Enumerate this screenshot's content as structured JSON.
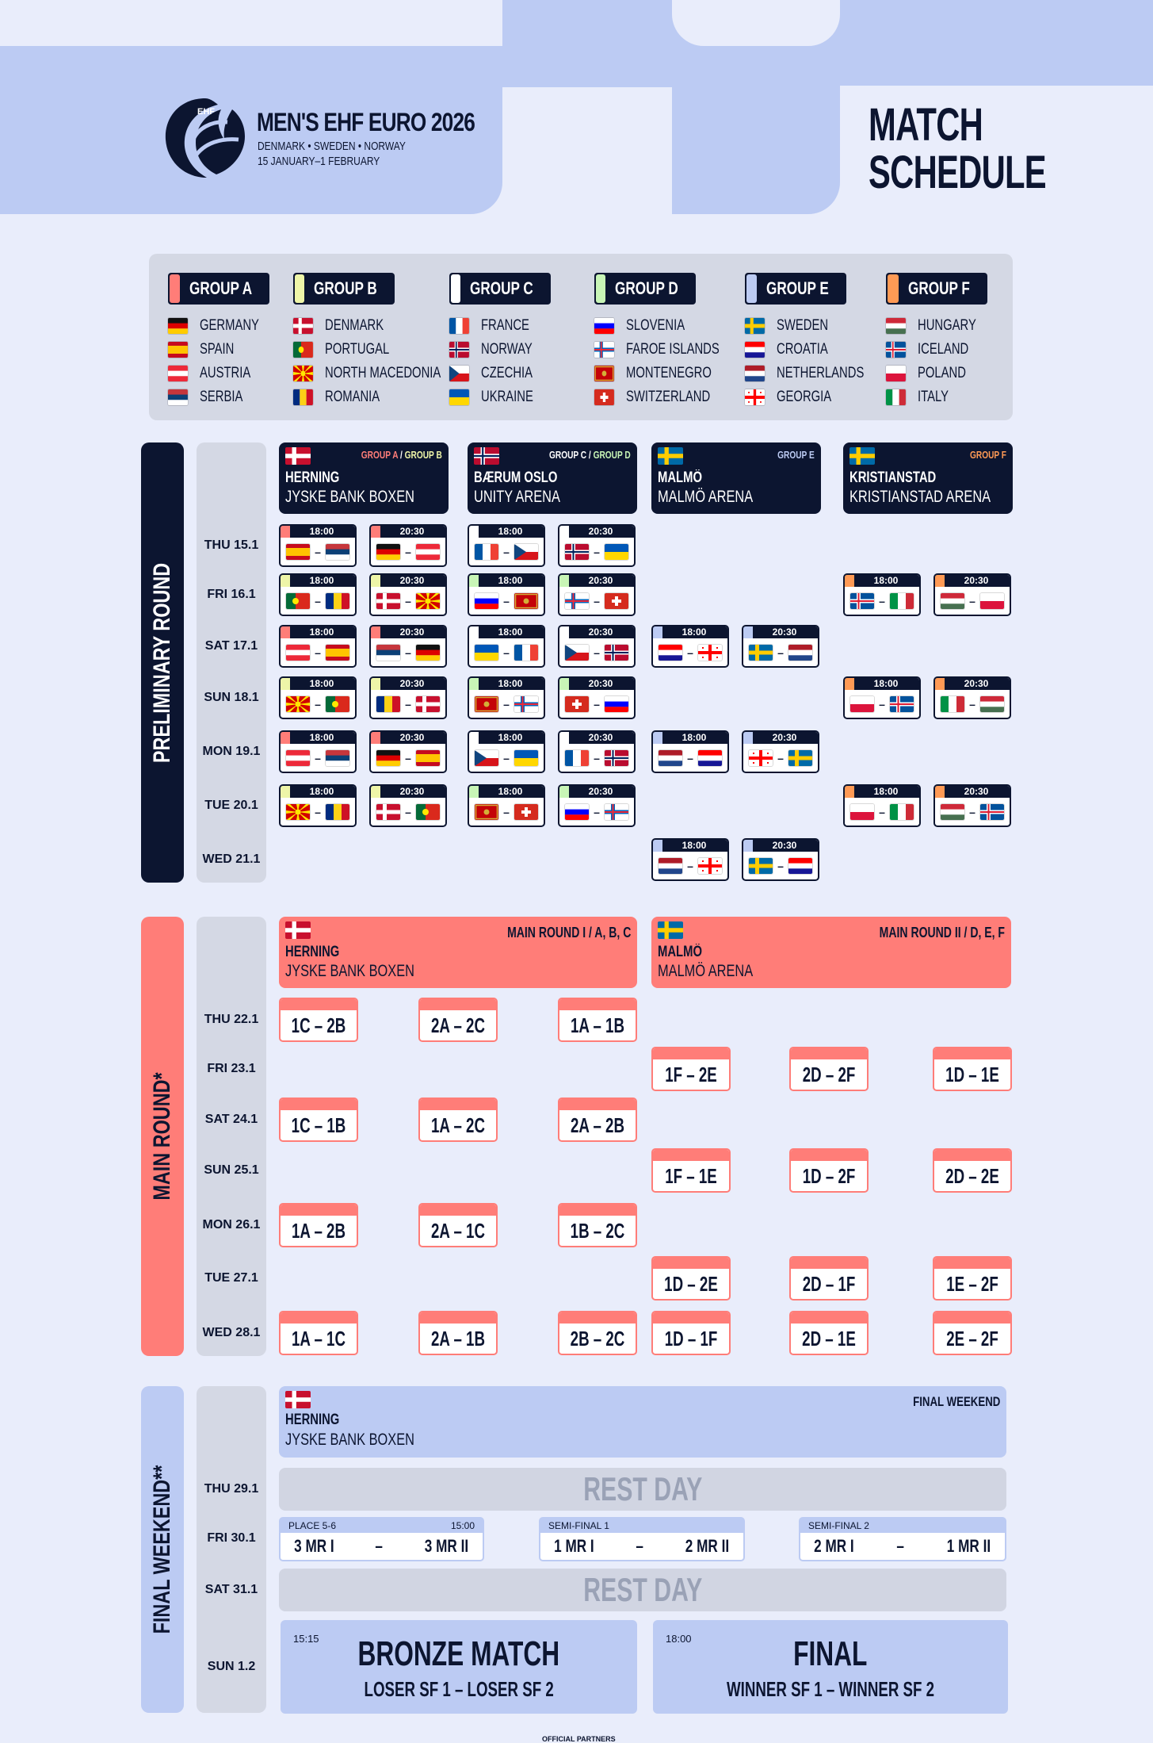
{
  "header": {
    "logo_text": "EHF",
    "title": "MEN'S EHF EURO 2026",
    "hosts": "DENMARK • SWEDEN • NORWAY",
    "dates": "15 JANUARY–1 FEBRUARY",
    "schedule_line1": "MATCH",
    "schedule_line2": "SCHEDULE"
  },
  "colors": {
    "A": "#ff7d78",
    "B": "#eef5a8",
    "C": "#ffffff",
    "D": "#c8f5b6",
    "E": "#bccbf3",
    "F": "#ff9a55",
    "navy": "#0c1530",
    "main": "#ff7d78",
    "final": "#bccbf3"
  },
  "groups": [
    {
      "label": "GROUP A",
      "color": "#ff7d78",
      "teams": [
        {
          "name": "GERMANY",
          "flag": "de"
        },
        {
          "name": "SPAIN",
          "flag": "es"
        },
        {
          "name": "AUSTRIA",
          "flag": "at"
        },
        {
          "name": "SERBIA",
          "flag": "rs"
        }
      ]
    },
    {
      "label": "GROUP B",
      "color": "#eef5a8",
      "teams": [
        {
          "name": "DENMARK",
          "flag": "dk"
        },
        {
          "name": "PORTUGAL",
          "flag": "pt"
        },
        {
          "name": "NORTH MACEDONIA",
          "flag": "mk"
        },
        {
          "name": "ROMANIA",
          "flag": "ro"
        }
      ]
    },
    {
      "label": "GROUP C",
      "color": "#ffffff",
      "teams": [
        {
          "name": "FRANCE",
          "flag": "fr"
        },
        {
          "name": "NORWAY",
          "flag": "no"
        },
        {
          "name": "CZECHIA",
          "flag": "cz"
        },
        {
          "name": "UKRAINE",
          "flag": "ua"
        }
      ]
    },
    {
      "label": "GROUP D",
      "color": "#c8f5b6",
      "teams": [
        {
          "name": "SLOVENIA",
          "flag": "si"
        },
        {
          "name": "FAROE ISLANDS",
          "flag": "fo"
        },
        {
          "name": "MONTENEGRO",
          "flag": "me"
        },
        {
          "name": "SWITZERLAND",
          "flag": "ch"
        }
      ]
    },
    {
      "label": "GROUP E",
      "color": "#bccbf3",
      "teams": [
        {
          "name": "SWEDEN",
          "flag": "se"
        },
        {
          "name": "CROATIA",
          "flag": "hr"
        },
        {
          "name": "NETHERLANDS",
          "flag": "nl"
        },
        {
          "name": "GEORGIA",
          "flag": "ge"
        }
      ]
    },
    {
      "label": "GROUP F",
      "color": "#ff9a55",
      "teams": [
        {
          "name": "HUNGARY",
          "flag": "hu"
        },
        {
          "name": "ICELAND",
          "flag": "is"
        },
        {
          "name": "POLAND",
          "flag": "pl"
        },
        {
          "name": "ITALY",
          "flag": "it"
        }
      ]
    }
  ],
  "sections": {
    "prelim": "PRELIMINARY ROUND",
    "main": "MAIN ROUND*",
    "final": "FINAL WEEKEND**"
  },
  "prelim_days": [
    "THU 15.1",
    "FRI 16.1",
    "SAT 17.1",
    "SUN 18.1",
    "MON 19.1",
    "TUE 20.1",
    "WED 21.1"
  ],
  "main_days": [
    "THU 22.1",
    "FRI 23.1",
    "SAT 24.1",
    "SUN 25.1",
    "MON 26.1",
    "TUE 27.1",
    "WED 28.1"
  ],
  "final_days": [
    "THU 29.1",
    "FRI 30.1",
    "SAT 31.1",
    "SUN 1.2"
  ],
  "prelim_venues": [
    {
      "flag": "dk",
      "city": "HERNING",
      "arena": "JYSKE BANK BOXEN",
      "g1": "GROUP A",
      "g2": "GROUP B",
      "c1": "#ff7d78",
      "c2": "#eef5a8"
    },
    {
      "flag": "no",
      "city": "BÆRUM OSLO",
      "arena": "UNITY ARENA",
      "g1": "GROUP C",
      "g2": "GROUP D",
      "c1": "#ffffff",
      "c2": "#c8f5b6"
    },
    {
      "flag": "se",
      "city": "MALMÖ",
      "arena": "MALMÖ ARENA",
      "g1": "GROUP E",
      "g2": "",
      "c1": "#bccbf3",
      "c2": ""
    },
    {
      "flag": "se",
      "city": "KRISTIANSTAD",
      "arena": "KRISTIANSTAD ARENA",
      "g1": "GROUP F",
      "g2": "",
      "c1": "#ff9a55",
      "c2": ""
    }
  ],
  "prelim_matches": [
    {
      "d": 0,
      "c": 0,
      "t": "18:00",
      "g": "A",
      "h": "es",
      "a": "rs"
    },
    {
      "d": 0,
      "c": 1,
      "t": "20:30",
      "g": "A",
      "h": "de",
      "a": "at"
    },
    {
      "d": 0,
      "c": 2,
      "t": "18:00",
      "g": "C",
      "h": "fr",
      "a": "cz"
    },
    {
      "d": 0,
      "c": 3,
      "t": "20:30",
      "g": "C",
      "h": "no",
      "a": "ua"
    },
    {
      "d": 1,
      "c": 0,
      "t": "18:00",
      "g": "B",
      "h": "pt",
      "a": "ro"
    },
    {
      "d": 1,
      "c": 1,
      "t": "20:30",
      "g": "B",
      "h": "dk",
      "a": "mk"
    },
    {
      "d": 1,
      "c": 2,
      "t": "18:00",
      "g": "D",
      "h": "si",
      "a": "me"
    },
    {
      "d": 1,
      "c": 3,
      "t": "20:30",
      "g": "D",
      "h": "fo",
      "a": "ch"
    },
    {
      "d": 1,
      "c": 6,
      "t": "18:00",
      "g": "F",
      "h": "is",
      "a": "it"
    },
    {
      "d": 1,
      "c": 7,
      "t": "20:30",
      "g": "F",
      "h": "hu",
      "a": "pl"
    },
    {
      "d": 2,
      "c": 0,
      "t": "18:00",
      "g": "A",
      "h": "at",
      "a": "es"
    },
    {
      "d": 2,
      "c": 1,
      "t": "20:30",
      "g": "A",
      "h": "rs",
      "a": "de"
    },
    {
      "d": 2,
      "c": 2,
      "t": "18:00",
      "g": "C",
      "h": "ua",
      "a": "fr"
    },
    {
      "d": 2,
      "c": 3,
      "t": "20:30",
      "g": "C",
      "h": "cz",
      "a": "no"
    },
    {
      "d": 2,
      "c": 4,
      "t": "18:00",
      "g": "E",
      "h": "hr",
      "a": "ge"
    },
    {
      "d": 2,
      "c": 5,
      "t": "20:30",
      "g": "E",
      "h": "se",
      "a": "nl"
    },
    {
      "d": 3,
      "c": 0,
      "t": "18:00",
      "g": "B",
      "h": "mk",
      "a": "pt"
    },
    {
      "d": 3,
      "c": 1,
      "t": "20:30",
      "g": "B",
      "h": "ro",
      "a": "dk"
    },
    {
      "d": 3,
      "c": 2,
      "t": "18:00",
      "g": "D",
      "h": "me",
      "a": "fo"
    },
    {
      "d": 3,
      "c": 3,
      "t": "20:30",
      "g": "D",
      "h": "ch",
      "a": "si"
    },
    {
      "d": 3,
      "c": 6,
      "t": "18:00",
      "g": "F",
      "h": "pl",
      "a": "is"
    },
    {
      "d": 3,
      "c": 7,
      "t": "20:30",
      "g": "F",
      "h": "it",
      "a": "hu"
    },
    {
      "d": 4,
      "c": 0,
      "t": "18:00",
      "g": "A",
      "h": "at",
      "a": "rs"
    },
    {
      "d": 4,
      "c": 1,
      "t": "20:30",
      "g": "A",
      "h": "de",
      "a": "es"
    },
    {
      "d": 4,
      "c": 2,
      "t": "18:00",
      "g": "C",
      "h": "cz",
      "a": "ua"
    },
    {
      "d": 4,
      "c": 3,
      "t": "20:30",
      "g": "C",
      "h": "fr",
      "a": "no"
    },
    {
      "d": 4,
      "c": 4,
      "t": "18:00",
      "g": "E",
      "h": "nl",
      "a": "hr"
    },
    {
      "d": 4,
      "c": 5,
      "t": "20:30",
      "g": "E",
      "h": "ge",
      "a": "se"
    },
    {
      "d": 5,
      "c": 0,
      "t": "18:00",
      "g": "B",
      "h": "mk",
      "a": "ro"
    },
    {
      "d": 5,
      "c": 1,
      "t": "20:30",
      "g": "B",
      "h": "dk",
      "a": "pt"
    },
    {
      "d": 5,
      "c": 2,
      "t": "18:00",
      "g": "D",
      "h": "me",
      "a": "ch"
    },
    {
      "d": 5,
      "c": 3,
      "t": "20:30",
      "g": "D",
      "h": "si",
      "a": "fo"
    },
    {
      "d": 5,
      "c": 6,
      "t": "18:00",
      "g": "F",
      "h": "pl",
      "a": "it"
    },
    {
      "d": 5,
      "c": 7,
      "t": "20:30",
      "g": "F",
      "h": "hu",
      "a": "is"
    },
    {
      "d": 6,
      "c": 4,
      "t": "18:00",
      "g": "E",
      "h": "nl",
      "a": "ge"
    },
    {
      "d": 6,
      "c": 5,
      "t": "20:30",
      "g": "E",
      "h": "se",
      "a": "hr"
    }
  ],
  "main_venues": [
    {
      "flag": "dk",
      "city": "HERNING",
      "arena": "JYSKE BANK BOXEN",
      "label": "MAIN ROUND I / A, B, C"
    },
    {
      "flag": "se",
      "city": "MALMÖ",
      "arena": "MALMÖ ARENA",
      "label": "MAIN ROUND II / D, E, F"
    }
  ],
  "main_matches": [
    {
      "d": 0,
      "c": 0,
      "t": "1C – 2B"
    },
    {
      "d": 0,
      "c": 1,
      "t": "2A – 2C"
    },
    {
      "d": 0,
      "c": 2,
      "t": "1A – 1B"
    },
    {
      "d": 1,
      "c": 3,
      "t": "1F – 2E"
    },
    {
      "d": 1,
      "c": 4,
      "t": "2D – 2F"
    },
    {
      "d": 1,
      "c": 5,
      "t": "1D – 1E"
    },
    {
      "d": 2,
      "c": 0,
      "t": "1C – 1B"
    },
    {
      "d": 2,
      "c": 1,
      "t": "1A – 2C"
    },
    {
      "d": 2,
      "c": 2,
      "t": "2A – 2B"
    },
    {
      "d": 3,
      "c": 3,
      "t": "1F – 1E"
    },
    {
      "d": 3,
      "c": 4,
      "t": "1D – 2F"
    },
    {
      "d": 3,
      "c": 5,
      "t": "2D – 2E"
    },
    {
      "d": 4,
      "c": 0,
      "t": "1A – 2B"
    },
    {
      "d": 4,
      "c": 1,
      "t": "2A – 1C"
    },
    {
      "d": 4,
      "c": 2,
      "t": "1B – 2C"
    },
    {
      "d": 5,
      "c": 3,
      "t": "1D – 2E"
    },
    {
      "d": 5,
      "c": 4,
      "t": "2D – 1F"
    },
    {
      "d": 5,
      "c": 5,
      "t": "1E – 2F"
    },
    {
      "d": 6,
      "c": 0,
      "t": "1A – 1C"
    },
    {
      "d": 6,
      "c": 1,
      "t": "2A – 1B"
    },
    {
      "d": 6,
      "c": 2,
      "t": "2B – 2C"
    },
    {
      "d": 6,
      "c": 3,
      "t": "1D – 1F"
    },
    {
      "d": 6,
      "c": 4,
      "t": "2D – 1E"
    },
    {
      "d": 6,
      "c": 5,
      "t": "2E – 2F"
    }
  ],
  "final_venue": {
    "flag": "dk",
    "city": "HERNING",
    "arena": "JYSKE BANK BOXEN",
    "label": "FINAL WEEKEND"
  },
  "rest_day": "REST DAY",
  "fri_matches": [
    {
      "label": "PLACE 5-6",
      "time": "15:00",
      "home": "3 MR I",
      "away": "3 MR II"
    },
    {
      "label": "SEMI-FINAL 1",
      "time": "",
      "home": "1 MR I",
      "away": "2 MR II"
    },
    {
      "label": "SEMI-FINAL 2",
      "time": "",
      "home": "2 MR I",
      "away": "1 MR II"
    }
  ],
  "bronze": {
    "time": "15:15",
    "title": "BRONZE MATCH",
    "teams": "LOSER SF 1 – LOSER SF 2"
  },
  "final": {
    "time": "18:00",
    "title": "FINAL",
    "teams": "WINNER SF 1 – WINNER SF 2"
  },
  "partners": "OFFICIAL PARTNERS"
}
